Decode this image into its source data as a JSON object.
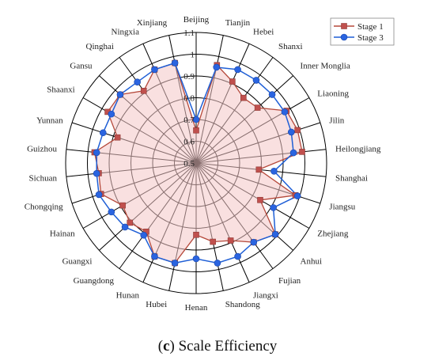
{
  "caption": {
    "paren_open": "(",
    "letter": "c",
    "paren_close": ")",
    "text": " Scale Efficiency"
  },
  "colors": {
    "stage1": "#b5483a",
    "stage1_fill": "#f4c7c7",
    "stage3": "#1f5fd6",
    "grid": "#000000"
  },
  "chart_data": {
    "type": "radar",
    "title": "",
    "range": [
      0.5,
      1.1
    ],
    "ticks": [
      0.5,
      0.6,
      0.7,
      0.8,
      0.9,
      1.0,
      1.1
    ],
    "tick_labels": [
      "0.5",
      "0.6",
      "0.7",
      "0.8",
      "0.9",
      "1",
      "1.1"
    ],
    "legend_position": "top-right",
    "categories": [
      "Beijing",
      "Tianjin",
      "Hebei",
      "Shanxi",
      "Inner Monglia",
      "Liaoning",
      "Jilin",
      "Heilongjiang",
      "Shanghai",
      "Jiangsu",
      "Zhejiang",
      "Anhui",
      "Fujian",
      "Jiangxi",
      "Shandong",
      "Henan",
      "Hubei",
      "Hunan",
      "Guangdong",
      "Guangxi",
      "Hainan",
      "Chongqing",
      "Sichuan",
      "Guizhou",
      "Yunnan",
      "Shaanxi",
      "Gansu",
      "Qinghai",
      "Ningxia",
      "Xinjiang"
    ],
    "series": [
      {
        "name": "Stage 1",
        "values": [
          0.65,
          0.96,
          0.91,
          0.87,
          0.88,
          0.98,
          0.99,
          0.99,
          0.79,
          0.98,
          0.84,
          0.99,
          0.95,
          0.89,
          0.87,
          0.83,
          0.97,
          0.97,
          0.89,
          0.91,
          0.89,
          0.96,
          0.95,
          0.97,
          0.88,
          0.97,
          0.97,
          0.91,
          0.97,
          0.97
        ]
      },
      {
        "name": "Stage 3",
        "values": [
          0.7,
          0.95,
          0.97,
          0.97,
          0.97,
          0.97,
          0.96,
          0.95,
          0.86,
          0.99,
          0.91,
          0.99,
          0.95,
          0.97,
          0.97,
          0.94,
          0.97,
          0.97,
          0.91,
          0.94,
          0.95,
          0.97,
          0.96,
          0.96,
          0.95,
          0.95,
          0.97,
          0.96,
          0.97,
          0.97
        ]
      }
    ]
  }
}
